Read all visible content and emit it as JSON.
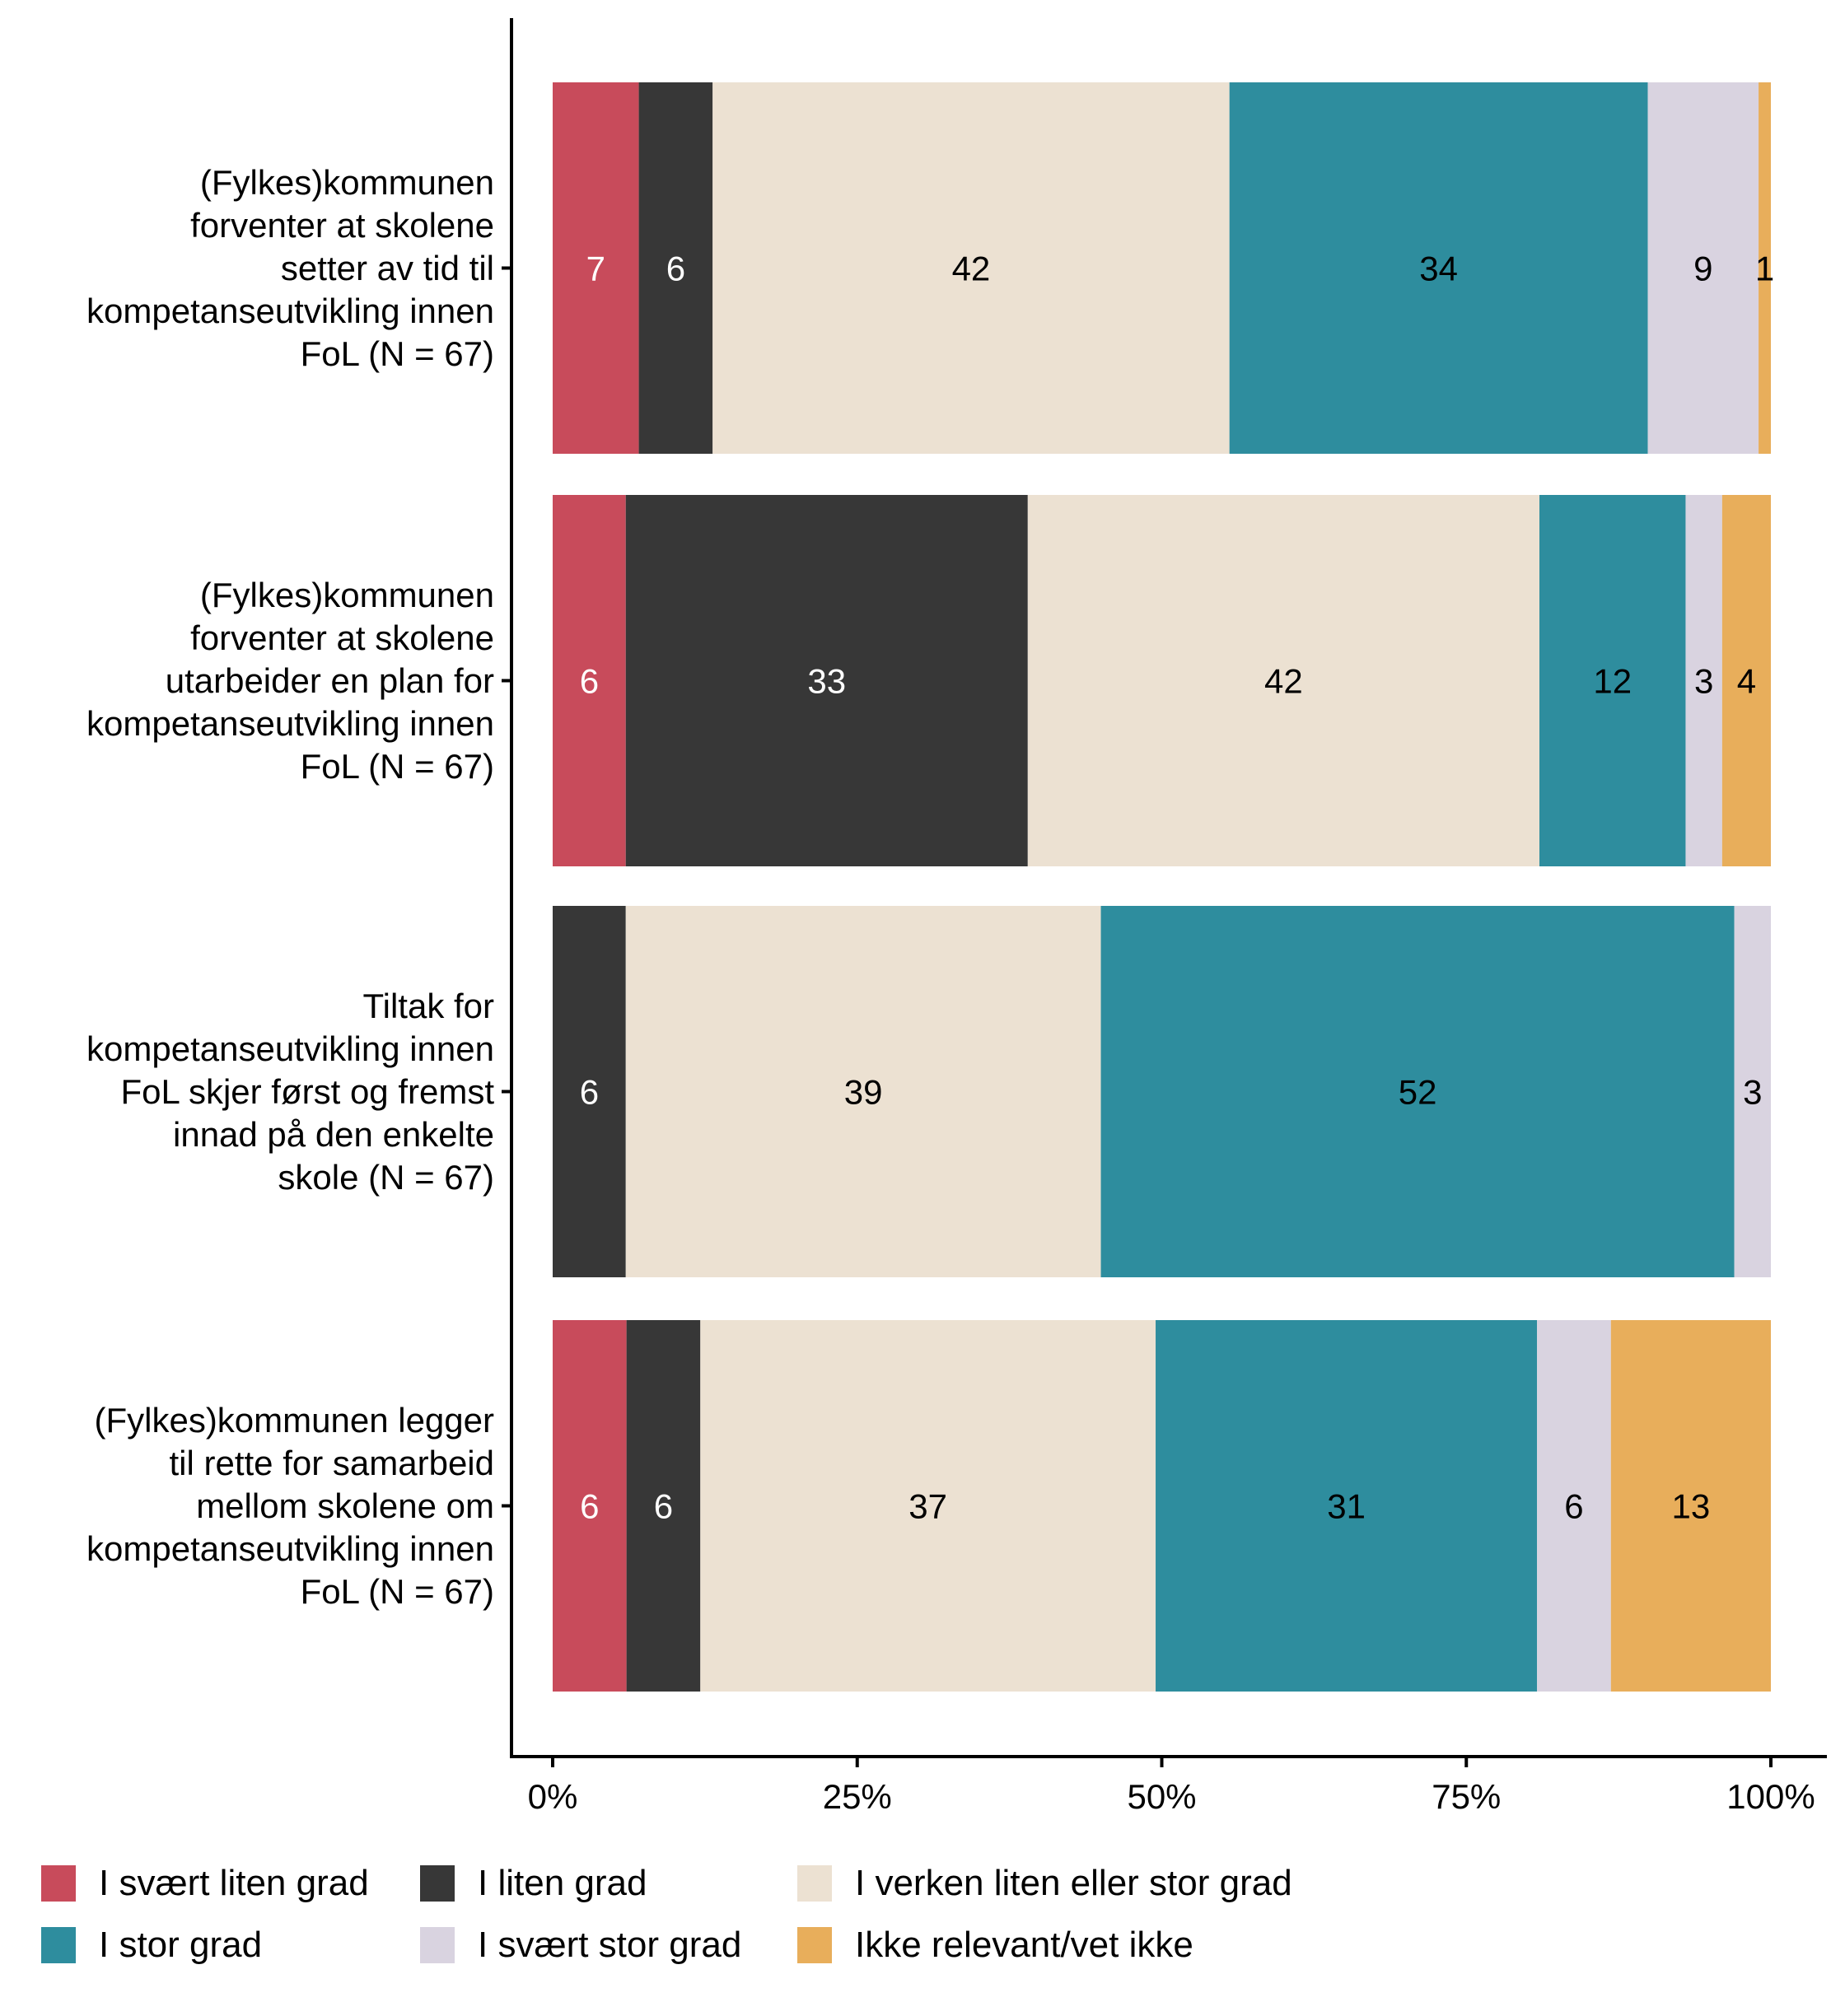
{
  "chart_data": {
    "type": "bar",
    "orientation": "horizontal",
    "stacked": true,
    "title": "",
    "xlabel": "",
    "ylabel": "",
    "xlim": [
      0,
      100
    ],
    "x_ticks": [
      "0%",
      "25%",
      "50%",
      "75%",
      "100%"
    ],
    "x_tick_values": [
      0,
      25,
      50,
      75,
      100
    ],
    "grid": false,
    "legend_position": "bottom",
    "categories": [
      "(Fylkes)kommunen\nforventer at skolene\nsetter av tid til\nkompetanseutvikling innen\nFoL (N = 67)",
      "(Fylkes)kommunen\nforventer at skolene\nutarbeider en plan for\nkompetanseutvikling innen\nFoL (N = 67)",
      "Tiltak for\nkompetanseutvikling innen\nFoL skjer først og fremst\ninnad på den enkelte\nskole (N = 67)",
      "(Fylkes)kommunen legger\ntil rette for samarbeid\nmellom skolene om\nkompetanseutvikling innen\nFoL (N = 67)"
    ],
    "series": [
      {
        "name": "I svært liten grad",
        "color": "#C84B5B",
        "label_color": "#ffffff",
        "values": [
          7,
          6,
          0,
          6
        ]
      },
      {
        "name": "I liten grad",
        "color": "#373737",
        "label_color": "#ffffff",
        "values": [
          6,
          33,
          6,
          6
        ]
      },
      {
        "name": "I verken liten eller stor grad",
        "color": "#ECE1D2",
        "label_color": "#000000",
        "values": [
          42,
          42,
          39,
          37
        ]
      },
      {
        "name": "I stor grad",
        "color": "#2E8D9E",
        "label_color": "#000000",
        "values": [
          34,
          12,
          52,
          31
        ]
      },
      {
        "name": "I svært stor grad",
        "color": "#D9D3E0",
        "label_color": "#000000",
        "values": [
          9,
          3,
          3,
          6
        ]
      },
      {
        "name": "Ikke relevant/vet ikke",
        "color": "#E8AE5B",
        "label_color": "#000000",
        "values": [
          1,
          4,
          0,
          13
        ]
      }
    ]
  },
  "legend": {
    "rows": [
      [
        "I svært liten grad",
        "I liten grad",
        "I verken liten eller stor grad"
      ],
      [
        "I stor grad",
        "I svært stor grad",
        "Ikke relevant/vet ikke"
      ]
    ]
  }
}
